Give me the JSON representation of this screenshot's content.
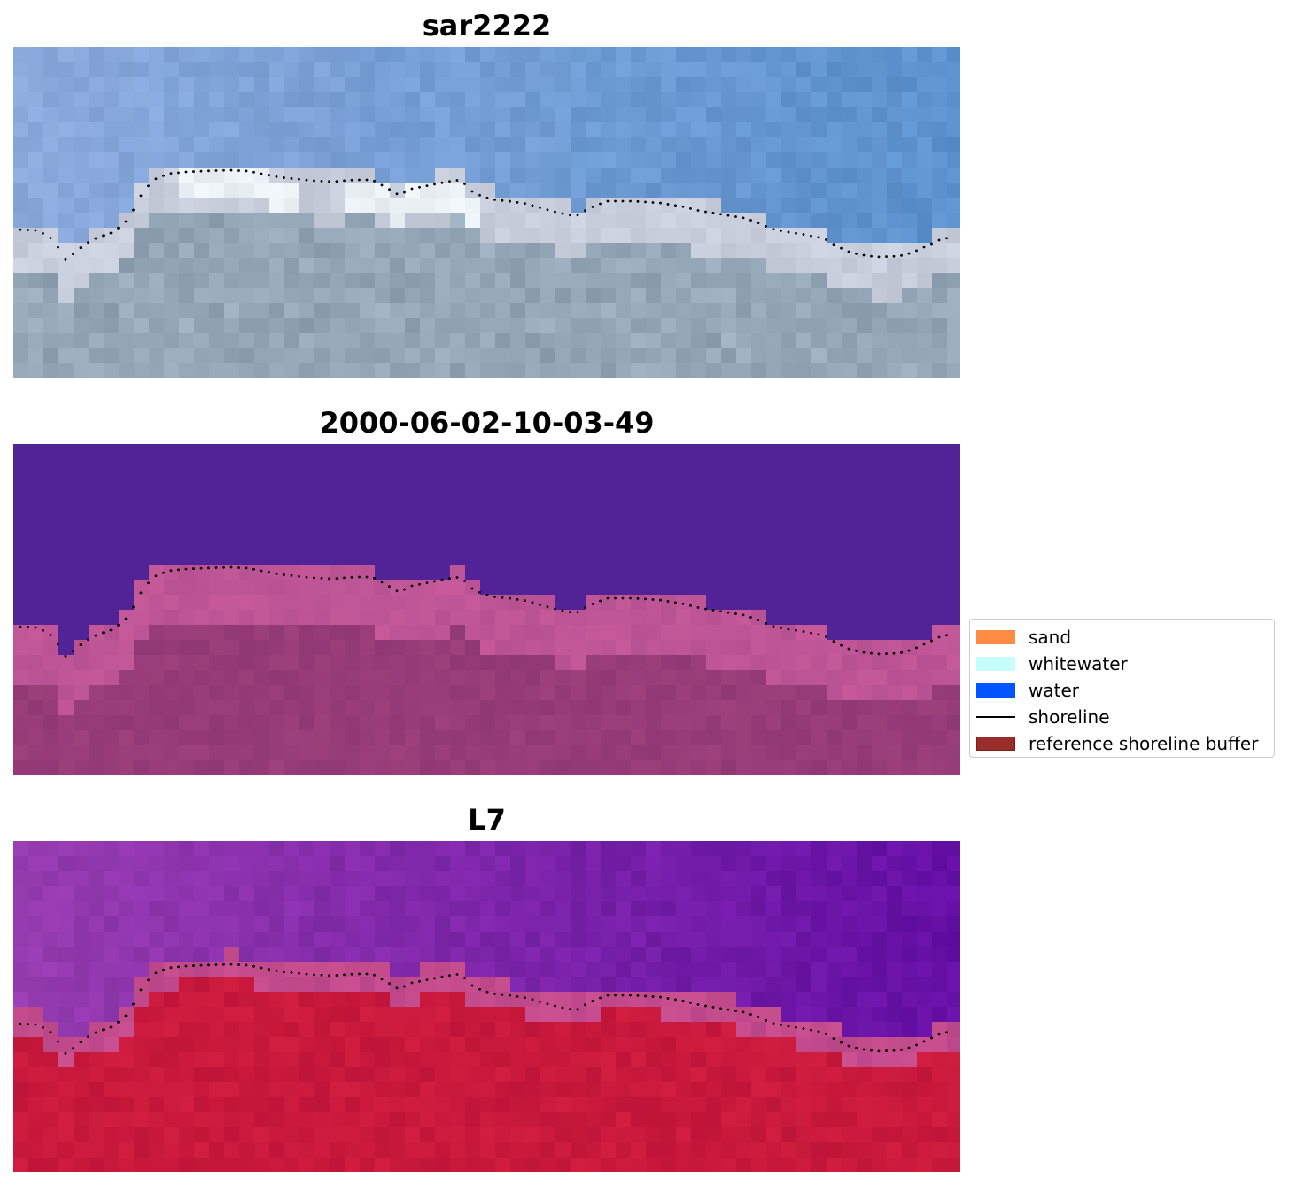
{
  "panels": [
    {
      "title": "sar2222",
      "style": "rgb"
    },
    {
      "title": "2000-06-02-10-03-49",
      "style": "classified"
    },
    {
      "title": "L7",
      "style": "false-color"
    }
  ],
  "legend": {
    "items": [
      {
        "label": "sand",
        "color": "#ff8c42",
        "kind": "patch"
      },
      {
        "label": "whitewater",
        "color": "#c8fffc",
        "kind": "patch"
      },
      {
        "label": "water",
        "color": "#0055ff",
        "kind": "patch"
      },
      {
        "label": "shoreline",
        "color": "#000000",
        "kind": "line"
      },
      {
        "label": "reference shoreline buffer",
        "color": "#992d2a",
        "kind": "patch"
      }
    ]
  },
  "shoreline_dot_color": "#000000"
}
